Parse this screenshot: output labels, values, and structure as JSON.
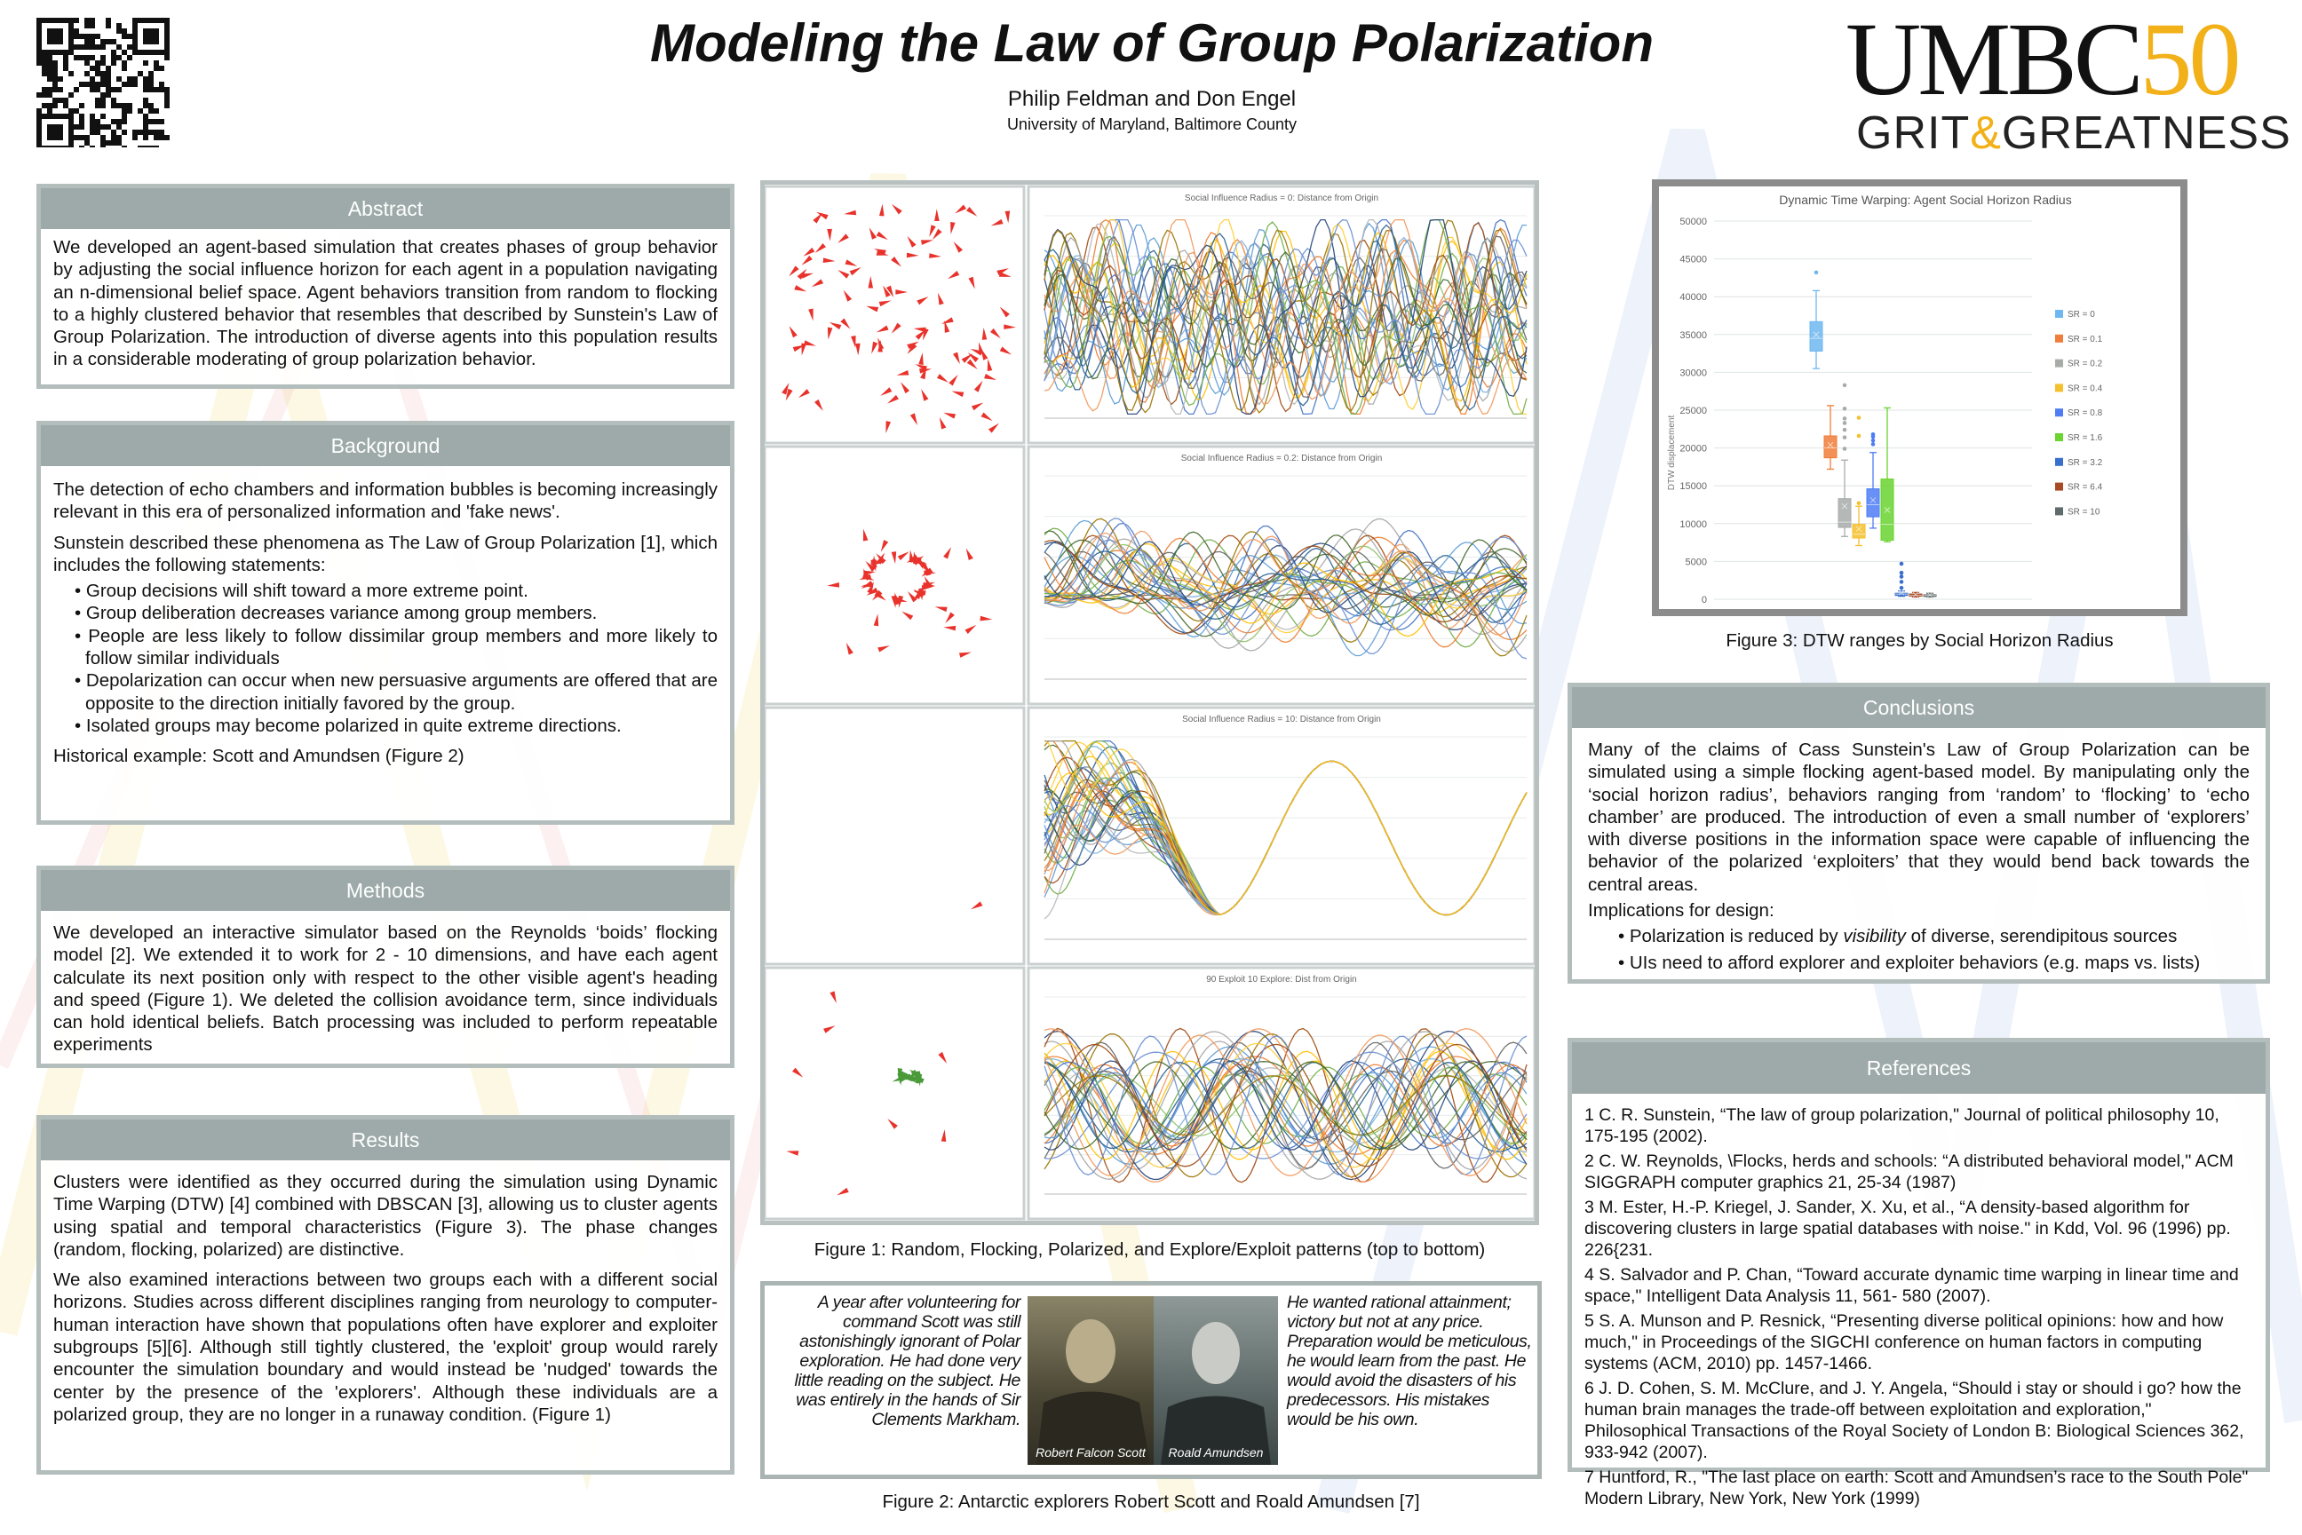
{
  "header": {
    "title": "Modeling the Law of Group Polarization",
    "authors": "Philip Feldman and Don Engel",
    "affiliation": "University of Maryland, Baltimore County",
    "logo_main": "UMBC",
    "logo_fifty": "50",
    "logo_grit": "GRIT",
    "logo_amp": "&",
    "logo_greatness": "GREATNESS"
  },
  "abstract": {
    "heading": "Abstract",
    "text": "We developed an agent-based simulation that creates phases of group behavior by adjusting the social influence horizon for each agent in a population navigating an n-dimensional belief space. Agent behaviors transition from random to flocking to a highly clustered behavior that resembles that described by Sunstein's Law of Group Polarization. The introduction of diverse agents into this population results in a considerable moderating of group polarization behavior."
  },
  "background": {
    "heading": "Background",
    "p1": "The detection of echo chambers and information bubbles is becoming increasingly relevant in this era of personalized information and 'fake news'.",
    "p2": "Sunstein described these phenomena as The Law of Group Polarization [1], which includes the following statements:",
    "bullets": [
      "• Group decisions will shift toward a more extreme point.",
      "• Group deliberation decreases variance among group members.",
      "• People are less likely to follow dissimilar group members and more likely to follow similar individuals",
      "• Depolarization can occur when new persuasive arguments are offered that are opposite to the direction initially favored by the group.",
      "• Isolated groups may become polarized in quite extreme directions."
    ],
    "p3": "Historical example: Scott and Amundsen (Figure 2)"
  },
  "methods": {
    "heading": "Methods",
    "text": "We developed an interactive simulator based on the Reynolds ‘boids’ flocking model [2].  We extended it to work for 2 - 10 dimensions, and have each agent calculate its next position only with respect to the other visible agent's heading and speed (Figure 1). We deleted the collision avoidance term, since individuals can hold identical beliefs.  Batch processing was included to perform repeatable experiments"
  },
  "results": {
    "heading": "Results",
    "p1": "Clusters were identified as they occurred during the simulation using Dynamic Time Warping (DTW) [4] combined with DBSCAN [3], allowing us to cluster agents using spatial and temporal characteristics (Figure  3). The phase changes (random, flocking, polarized) are distinctive.",
    "p2": "We also examined interactions between two groups each with a different social horizons. Studies across different disciplines ranging from neurology to computer-human interaction have shown that populations often have explorer and exploiter subgroups [5][6]. Although still tightly clustered, the 'exploit' group would rarely encounter the simulation boundary and would instead be 'nudged' towards the center by the presence of the 'explorers'. Although these individuals are a polarized group, they are no longer in a runaway condition. (Figure 1)"
  },
  "figure1": {
    "caption": "Figure 1: Random, Flocking, Polarized, and Explore/Exploit patterns (top to bottom)",
    "chart_titles": [
      "Social Influence Radius = 0: Distance from Origin",
      "Social Influence Radius = 0.2: Distance from Origin",
      "Social Influence Radius = 10: Distance from Origin",
      "90 Exploit 10 Explore: Dist from Origin"
    ]
  },
  "figure2": {
    "left_text": "A year after volunteering for command Scott was still astonishingly ignorant of Polar exploration. He had done very little reading on the subject. He was entirely in the hands of Sir Clements Markham.",
    "right_text": "He wanted rational attainment; victory but not at any price. Preparation would be meticulous, he would learn from the past. He would avoid the disasters of his predecessors. His mistakes would be his own.",
    "scott_label": "Robert Falcon Scott",
    "amundsen_label": "Roald Amundsen",
    "caption": "Figure 2: Antarctic explorers Robert Scott and Roald Amundsen [7]"
  },
  "figure3": {
    "caption": "Figure 3: DTW ranges by Social Horizon Radius"
  },
  "conclusions": {
    "heading": "Conclusions",
    "p1": "Many of the claims of Cass Sunstein's Law of Group Polarization can be simulated using a simple flocking agent-based model. By manipulating only the ‘social horizon radius’, behaviors ranging from ‘random’ to ‘flocking’ to ‘echo chamber’ are produced. The introduction of even a small number of  ‘explorers’ with diverse positions in the information space were capable of influencing the behavior of the polarized ‘exploiters’ that they would bend back towards the central areas.",
    "p2": "Implications for design:",
    "b1_pre": "• Polarization is reduced by ",
    "b1_em": "visibility",
    "b1_post": " of diverse, serendipitous sources",
    "b2": "• UIs need to afford explorer and exploiter behaviors (e.g. maps vs. lists)"
  },
  "references": {
    "heading": "References",
    "items": [
      "1 C. R. Sunstein, “The law of group polarization,\" Journal of political philosophy 10, 175-195 (2002).",
      "2 C. W. Reynolds, \\Flocks, herds and schools: “A distributed behavioral model,\" ACM SIGGRAPH computer graphics 21, 25-34 (1987)",
      "3 M. Ester, H.-P. Kriegel, J. Sander, X. Xu, et al., “A density-based algorithm for discovering clusters in large spatial databases with noise.\" in Kdd, Vol. 96 (1996) pp. 226{231.",
      "4 S. Salvador and P. Chan, “Toward accurate dynamic time warping in linear time and space,\" Intelligent Data Analysis 11, 561- 580 (2007).",
      "5 S. A. Munson and P. Resnick, “Presenting diverse political opinions: how and how much,\" in Proceedings of the SIGCHI conference on human factors in computing systems (ACM, 2010) pp. 1457-1466.",
      "6 J. D. Cohen, S. M. McClure, and J. Y. Angela, “Should i stay or should i go? how the human brain manages the trade-off between exploitation and exploration,\" Philosophical Transactions of the Royal Society of London B: Biological Sciences 362, 933-942 (2007).",
      "7 Huntford, R., \"The last place on earth: Scott and Amundsen’s race to the South Pole\" Modern Library, New York, New York (1999)"
    ]
  },
  "colors": {
    "section_header": "#9daaa9",
    "panel_border": "#b3bdbc",
    "logo_gold": "#f2b019",
    "agent_red": "#e8322b"
  },
  "chart_data": {
    "type": "box",
    "title": "Dynamic Time Warping: Agent Social Horizon Radius",
    "ylabel": "DTW displacement",
    "xlabel": "",
    "ylim": [
      0,
      50000
    ],
    "yticks": [
      "0",
      "5000",
      "10000",
      "15000",
      "20000",
      "25000",
      "30000",
      "35000",
      "40000",
      "45000",
      "50000"
    ],
    "grid": true,
    "legend_position": "right",
    "series": [
      {
        "name": "SR = 0",
        "color": "#6fb7f0",
        "min": 30500,
        "q1": 32800,
        "median": 34500,
        "q3": 36700,
        "max": 40800,
        "mean": 35000,
        "outliers": [
          43200
        ]
      },
      {
        "name": "SR = 0.1",
        "color": "#f07d3a",
        "min": 17200,
        "q1": 18700,
        "median": 20000,
        "q3": 21600,
        "max": 25600,
        "mean": 20400,
        "outliers": []
      },
      {
        "name": "SR = 0.2",
        "color": "#a7aca9",
        "min": 8300,
        "q1": 9500,
        "median": 10200,
        "q3": 13300,
        "max": 18400,
        "mean": 12300,
        "outliers": [
          19900,
          21400,
          22400,
          23300,
          23900,
          25200,
          28300
        ]
      },
      {
        "name": "SR = 0.4",
        "color": "#f5c02d",
        "min": 7100,
        "q1": 8100,
        "median": 8600,
        "q3": 9900,
        "max": 12300,
        "mean": 9300,
        "outliers": [
          12700,
          21600,
          24000
        ]
      },
      {
        "name": "SR = 0.8",
        "color": "#4e7cf5",
        "min": 9400,
        "q1": 10900,
        "median": 12500,
        "q3": 14600,
        "max": 19400,
        "mean": 13100,
        "outliers": [
          20500,
          21000,
          21500,
          21800
        ]
      },
      {
        "name": "SR = 1.6",
        "color": "#6ad430",
        "min": 7600,
        "q1": 7800,
        "median": 9900,
        "q3": 15900,
        "max": 25300,
        "mean": 11800,
        "outliers": []
      },
      {
        "name": "SR = 3.2",
        "color": "#3a6fcc",
        "min": 400,
        "q1": 500,
        "median": 700,
        "q3": 800,
        "max": 1100,
        "mean": 900,
        "outliers": [
          1500,
          2300,
          3000,
          3500,
          4700
        ]
      },
      {
        "name": "SR = 6.4",
        "color": "#a84b25",
        "min": 300,
        "q1": 400,
        "median": 500,
        "q3": 700,
        "max": 900,
        "mean": 600,
        "outliers": []
      },
      {
        "name": "SR = 10",
        "color": "#5f6a6a",
        "min": 300,
        "q1": 400,
        "median": 500,
        "q3": 600,
        "max": 800,
        "mean": 600,
        "outliers": []
      }
    ]
  }
}
